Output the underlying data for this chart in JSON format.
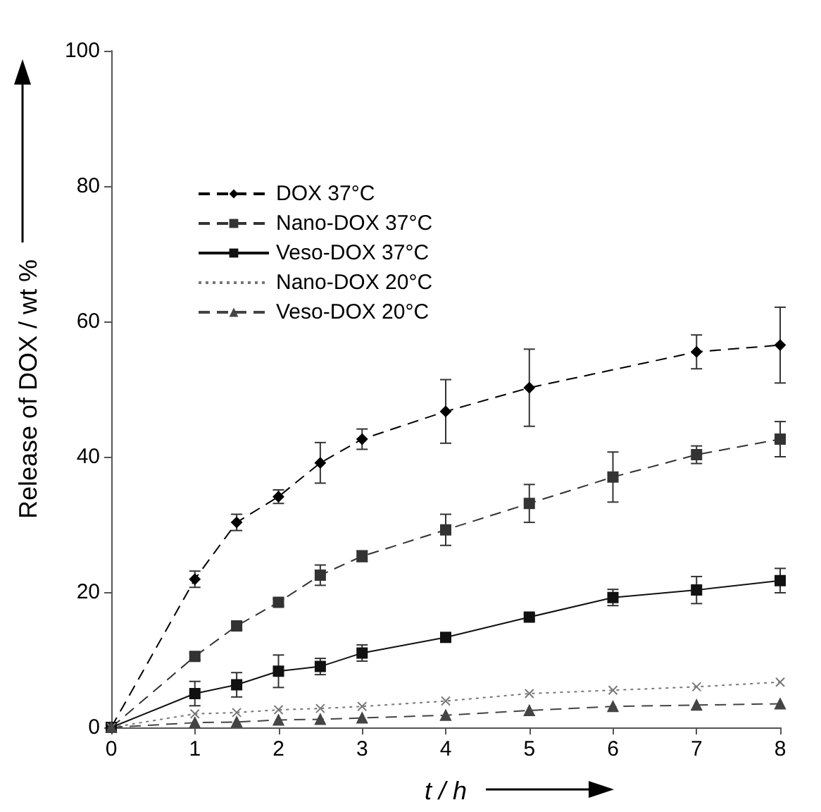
{
  "chart_data": {
    "type": "line",
    "xlabel": "t / h",
    "ylabel": "Release of DOX / wt %",
    "x": [
      0,
      1,
      1.5,
      2,
      2.5,
      3,
      4,
      5,
      6,
      7,
      8
    ],
    "xlim": [
      0,
      8
    ],
    "xticks": [
      0,
      1,
      2,
      3,
      4,
      5,
      6,
      7,
      8
    ],
    "ylim": [
      0,
      100
    ],
    "yticks": [
      0,
      20,
      40,
      60,
      80,
      100
    ],
    "grid": false,
    "legend": "top left",
    "series": [
      {
        "name": "DOX 37°C",
        "color": "#000000",
        "marker": "diamond",
        "line_style": "dashed",
        "values": [
          0,
          21.9,
          30.3,
          34.1,
          39.1,
          42.6,
          46.7,
          50.2,
          null,
          55.5,
          56.5
        ],
        "errors": [
          null,
          1.2,
          1.2,
          1,
          3,
          1.5,
          4.7,
          5.7,
          null,
          2.5,
          5.6
        ]
      },
      {
        "name": "Nano-DOX 37°C",
        "color": "#333333",
        "marker": "square",
        "line_style": "dashed",
        "values": [
          0,
          10.5,
          15,
          18.5,
          22.5,
          25.3,
          29.2,
          33.1,
          37,
          40.3,
          42.6
        ],
        "errors": [
          null,
          0.5,
          0.5,
          0.5,
          1.5,
          0.8,
          2.3,
          2.8,
          3.7,
          1.3,
          2.6
        ]
      },
      {
        "name": "Veso-DOX 37°C",
        "color": "#111111",
        "marker": "square",
        "line_style": "solid",
        "values": [
          0,
          5,
          6.3,
          8.3,
          9,
          11,
          13.3,
          16.3,
          19.2,
          20.3,
          21.7
        ],
        "errors": [
          null,
          1.8,
          1.8,
          2.4,
          1.2,
          1.2,
          0.6,
          0.4,
          1.2,
          2,
          1.8
        ]
      },
      {
        "name": "Nano-DOX 20°C",
        "color": "#777777",
        "marker": "cross",
        "line_style": "dotted",
        "values": [
          0,
          2,
          2.2,
          2.6,
          2.8,
          3.1,
          3.9,
          5,
          5.5,
          6,
          6.7
        ]
      },
      {
        "name": "Veso-DOX 20°C",
        "color": "#444444",
        "marker": "triangle",
        "line_style": "dashed",
        "values": [
          0,
          0.7,
          0.8,
          1.1,
          1.2,
          1.4,
          1.8,
          2.5,
          3.1,
          3.3,
          3.5
        ]
      }
    ]
  }
}
